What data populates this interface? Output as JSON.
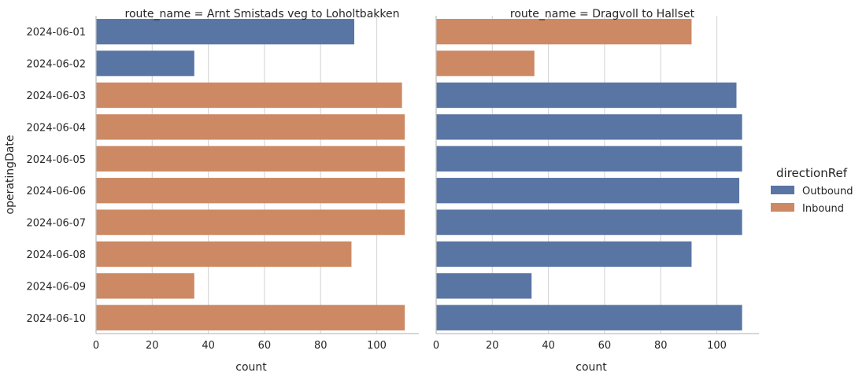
{
  "chart_data": {
    "type": "bar",
    "orientation": "horizontal",
    "ylabel": "operatingDate",
    "xlabel": "count",
    "xlim": [
      0,
      115
    ],
    "xticks": [
      0,
      20,
      40,
      60,
      80,
      100
    ],
    "grid": "vertical",
    "categories": [
      "2024-06-01",
      "2024-06-02",
      "2024-06-03",
      "2024-06-04",
      "2024-06-05",
      "2024-06-06",
      "2024-06-07",
      "2024-06-08",
      "2024-06-09",
      "2024-06-10"
    ],
    "legend": {
      "title": "directionRef",
      "placement": "right",
      "entries": [
        {
          "name": "Outbound",
          "color": "#5975a4"
        },
        {
          "name": "Inbound",
          "color": "#cc8963"
        }
      ]
    },
    "panels": [
      {
        "title": "route_name = Arnt Smistads veg to Loholtbakken",
        "bars": [
          {
            "category": "2024-06-01",
            "direction": "Outbound",
            "value": 92
          },
          {
            "category": "2024-06-02",
            "direction": "Outbound",
            "value": 35
          },
          {
            "category": "2024-06-03",
            "direction": "Inbound",
            "value": 109
          },
          {
            "category": "2024-06-04",
            "direction": "Inbound",
            "value": 110
          },
          {
            "category": "2024-06-05",
            "direction": "Inbound",
            "value": 110
          },
          {
            "category": "2024-06-06",
            "direction": "Inbound",
            "value": 110
          },
          {
            "category": "2024-06-07",
            "direction": "Inbound",
            "value": 110
          },
          {
            "category": "2024-06-08",
            "direction": "Inbound",
            "value": 91
          },
          {
            "category": "2024-06-09",
            "direction": "Inbound",
            "value": 35
          },
          {
            "category": "2024-06-10",
            "direction": "Inbound",
            "value": 110
          }
        ]
      },
      {
        "title": "route_name = Dragvoll to Hallset",
        "bars": [
          {
            "category": "2024-06-01",
            "direction": "Inbound",
            "value": 91
          },
          {
            "category": "2024-06-02",
            "direction": "Inbound",
            "value": 35
          },
          {
            "category": "2024-06-03",
            "direction": "Outbound",
            "value": 107
          },
          {
            "category": "2024-06-04",
            "direction": "Outbound",
            "value": 109
          },
          {
            "category": "2024-06-05",
            "direction": "Outbound",
            "value": 109
          },
          {
            "category": "2024-06-06",
            "direction": "Outbound",
            "value": 108
          },
          {
            "category": "2024-06-07",
            "direction": "Outbound",
            "value": 109
          },
          {
            "category": "2024-06-08",
            "direction": "Outbound",
            "value": 91
          },
          {
            "category": "2024-06-09",
            "direction": "Outbound",
            "value": 34
          },
          {
            "category": "2024-06-10",
            "direction": "Outbound",
            "value": 109
          }
        ]
      }
    ]
  }
}
